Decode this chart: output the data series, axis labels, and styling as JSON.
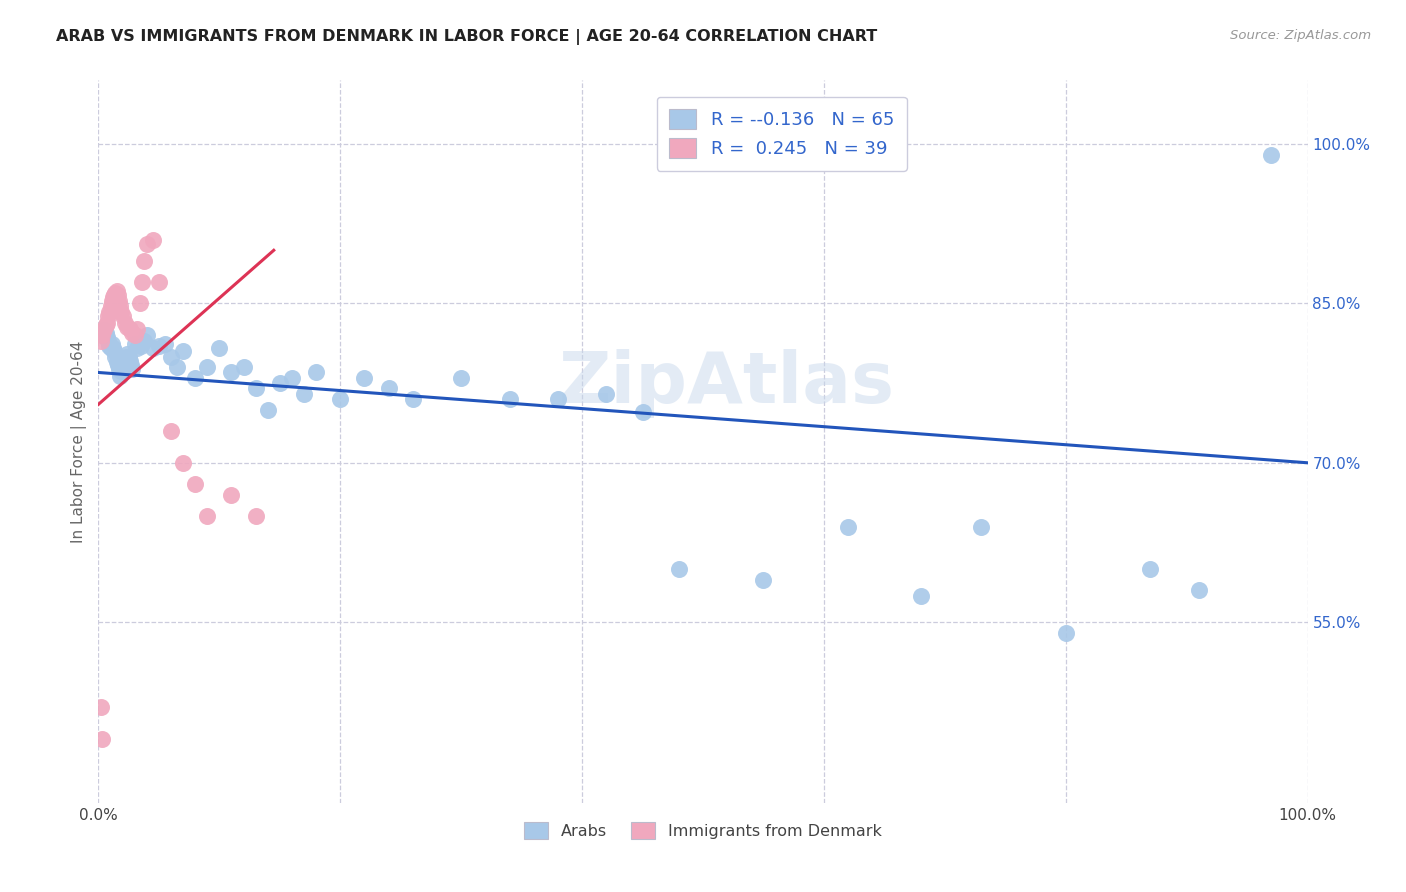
{
  "title": "ARAB VS IMMIGRANTS FROM DENMARK IN LABOR FORCE | AGE 20-64 CORRELATION CHART",
  "source": "Source: ZipAtlas.com",
  "ylabel": "In Labor Force | Age 20-64",
  "xlim": [
    0.0,
    1.0
  ],
  "ylim": [
    0.38,
    1.06
  ],
  "ytick_values": [
    0.55,
    0.7,
    0.85,
    1.0
  ],
  "ytick_labels": [
    "55.0%",
    "70.0%",
    "85.0%",
    "100.0%"
  ],
  "legend_r1": "-0.136",
  "legend_n1": "65",
  "legend_r2": "0.245",
  "legend_n2": "39",
  "arab_color": "#a8c8e8",
  "denmark_color": "#f0a8be",
  "arab_line_color": "#2255bb",
  "denmark_line_color": "#dd3355",
  "watermark": "ZipAtlas",
  "background_color": "#ffffff",
  "grid_color": "#ccccdd",
  "arab_line_start_y": 0.785,
  "arab_line_end_y": 0.7,
  "denmark_line_start_y": 0.755,
  "denmark_line_end_x": 0.145,
  "denmark_line_end_y": 0.9,
  "arab_x": [
    0.003,
    0.005,
    0.006,
    0.007,
    0.008,
    0.009,
    0.01,
    0.011,
    0.012,
    0.013,
    0.014,
    0.015,
    0.016,
    0.017,
    0.018,
    0.019,
    0.02,
    0.021,
    0.022,
    0.023,
    0.024,
    0.025,
    0.026,
    0.027,
    0.028,
    0.03,
    0.032,
    0.035,
    0.038,
    0.04,
    0.045,
    0.05,
    0.055,
    0.06,
    0.065,
    0.07,
    0.08,
    0.09,
    0.1,
    0.11,
    0.12,
    0.13,
    0.14,
    0.15,
    0.16,
    0.17,
    0.18,
    0.2,
    0.22,
    0.24,
    0.26,
    0.3,
    0.34,
    0.38,
    0.42,
    0.45,
    0.48,
    0.55,
    0.62,
    0.68,
    0.73,
    0.8,
    0.87,
    0.91,
    0.97
  ],
  "arab_y": [
    0.82,
    0.825,
    0.822,
    0.818,
    0.815,
    0.81,
    0.808,
    0.812,
    0.808,
    0.805,
    0.8,
    0.795,
    0.792,
    0.788,
    0.782,
    0.786,
    0.79,
    0.795,
    0.798,
    0.8,
    0.802,
    0.8,
    0.796,
    0.792,
    0.788,
    0.812,
    0.808,
    0.81,
    0.815,
    0.82,
    0.808,
    0.81,
    0.812,
    0.8,
    0.79,
    0.805,
    0.78,
    0.79,
    0.808,
    0.785,
    0.79,
    0.77,
    0.75,
    0.775,
    0.78,
    0.765,
    0.785,
    0.76,
    0.78,
    0.77,
    0.76,
    0.78,
    0.76,
    0.76,
    0.765,
    0.748,
    0.6,
    0.59,
    0.64,
    0.575,
    0.64,
    0.54,
    0.6,
    0.58,
    0.99
  ],
  "denmark_x": [
    0.002,
    0.003,
    0.004,
    0.005,
    0.006,
    0.007,
    0.008,
    0.009,
    0.01,
    0.011,
    0.012,
    0.013,
    0.014,
    0.015,
    0.016,
    0.017,
    0.018,
    0.019,
    0.02,
    0.022,
    0.024,
    0.026,
    0.028,
    0.03,
    0.032,
    0.034,
    0.036,
    0.038,
    0.04,
    0.045,
    0.05,
    0.06,
    0.07,
    0.08,
    0.09,
    0.11,
    0.13,
    0.002,
    0.003
  ],
  "denmark_y": [
    0.815,
    0.82,
    0.824,
    0.826,
    0.83,
    0.832,
    0.838,
    0.842,
    0.848,
    0.852,
    0.856,
    0.858,
    0.86,
    0.862,
    0.858,
    0.852,
    0.848,
    0.842,
    0.838,
    0.832,
    0.828,
    0.826,
    0.822,
    0.82,
    0.826,
    0.85,
    0.87,
    0.89,
    0.906,
    0.91,
    0.87,
    0.73,
    0.7,
    0.68,
    0.65,
    0.67,
    0.65,
    0.47,
    0.44
  ]
}
